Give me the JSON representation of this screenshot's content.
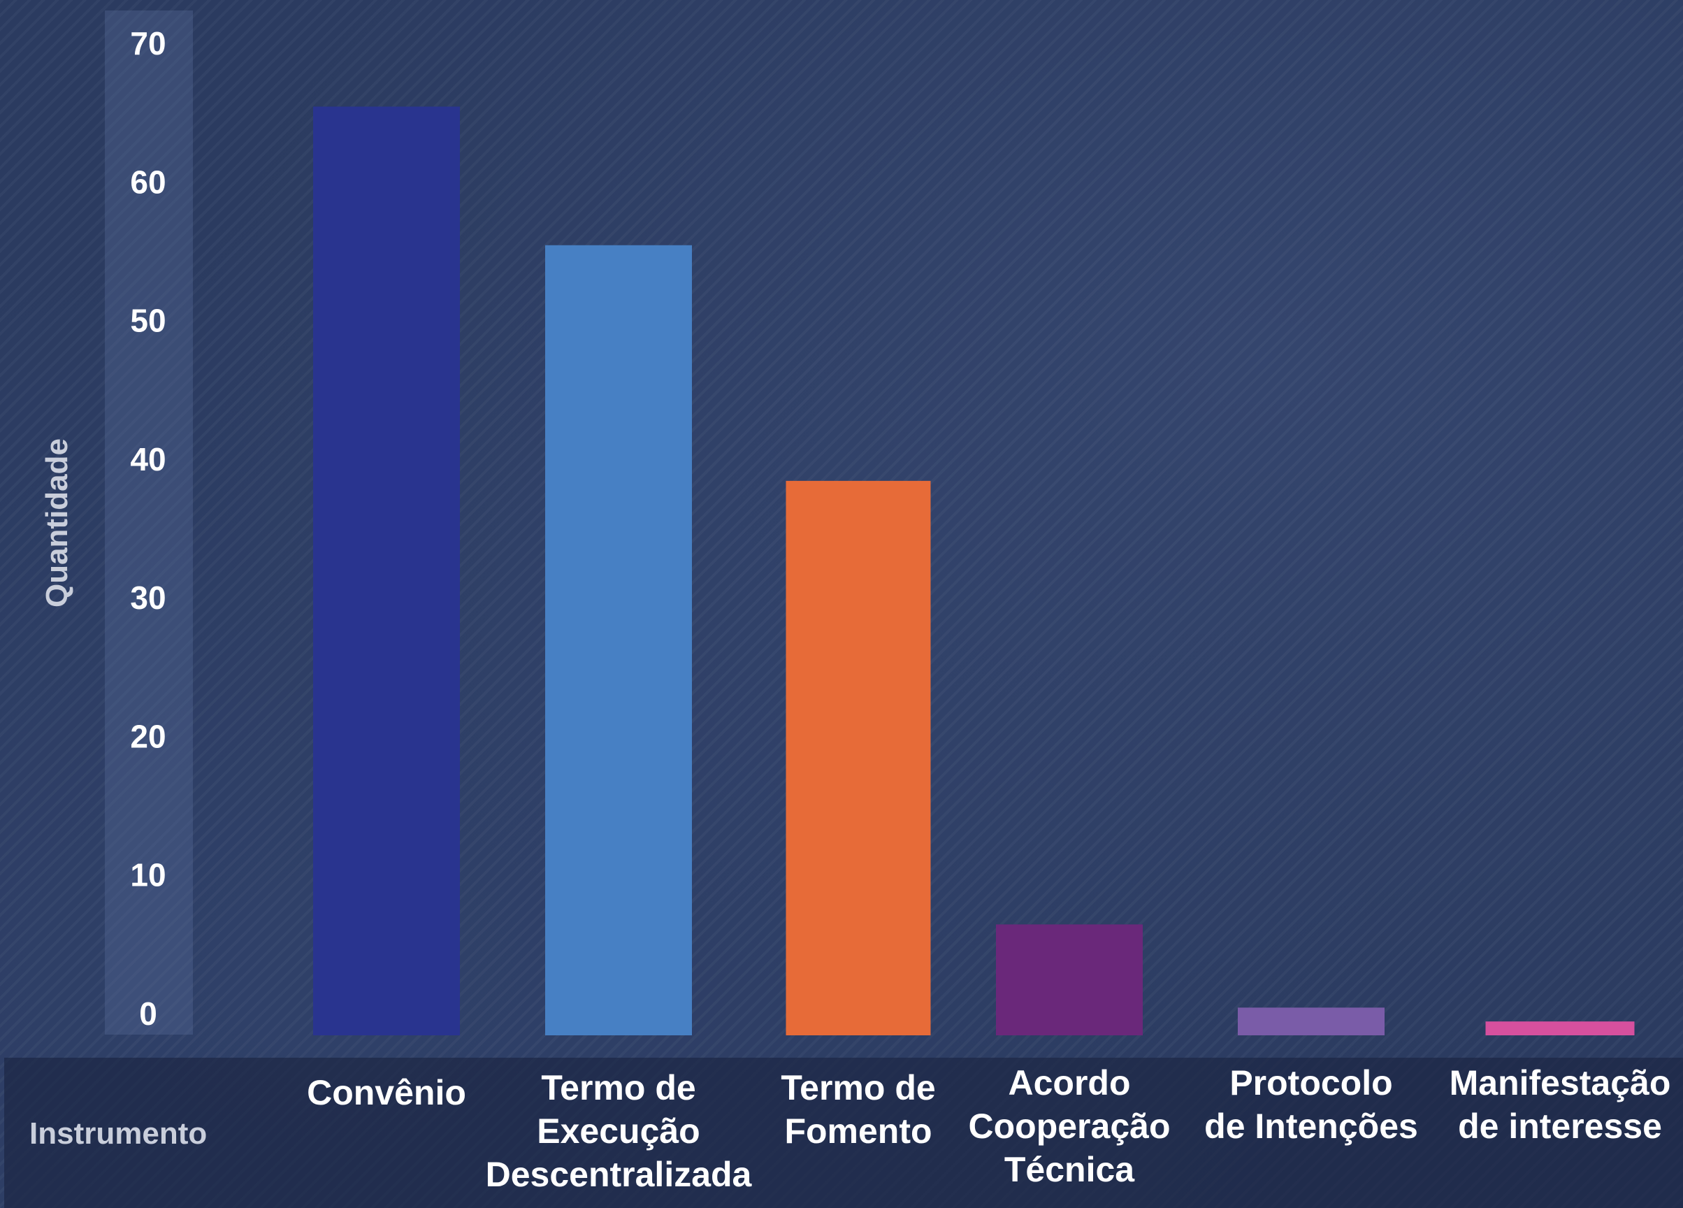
{
  "chart_data": {
    "type": "bar",
    "categories": [
      "Convênio",
      "Termo de Execução Descentralizada",
      "Termo de Fomento",
      "Acordo Cooperação Técnica",
      "Protocolo de Intenções",
      "Manifestação de interesse"
    ],
    "category_lines": [
      [
        "Convênio"
      ],
      [
        "Termo de",
        "Execução",
        "Descentralizada"
      ],
      [
        "Termo de",
        "Fomento"
      ],
      [
        "Acordo",
        "Cooperação",
        "Técnica"
      ],
      [
        "Protocolo",
        "de Intenções"
      ],
      [
        "Manifestação",
        "de interesse"
      ]
    ],
    "values": [
      67,
      57,
      40,
      8,
      2,
      1
    ],
    "colors": [
      "#29348f",
      "#4780c4",
      "#e76b38",
      "#6a287a",
      "#7a5ca8",
      "#d6509e"
    ],
    "title": "",
    "xlabel": "Instrumento",
    "ylabel": "Quantidade",
    "ylim": [
      0,
      70
    ],
    "yticks": [
      0,
      10,
      20,
      30,
      40,
      50,
      60,
      70
    ],
    "grid": false,
    "legend": "none"
  }
}
